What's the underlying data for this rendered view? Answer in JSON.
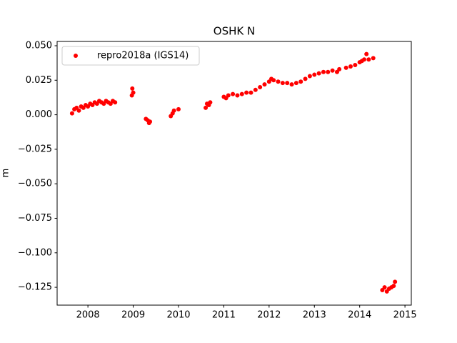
{
  "chart_data": {
    "type": "scatter",
    "title": "OSHK N",
    "y_label": "m",
    "xlim": [
      2007.32,
      2015.14
    ],
    "xticks": [
      2008,
      2009,
      2010,
      2011,
      2012,
      2013,
      2014,
      2015
    ],
    "ylim": [
      -0.1379,
      0.0531
    ],
    "yticks": [
      {
        "value": 0.05,
        "label": "0.050"
      },
      {
        "value": 0.025,
        "label": "0.025"
      },
      {
        "value": 0,
        "label": "0.000"
      },
      {
        "value": -0.025,
        "label": "−0.025"
      },
      {
        "value": -0.05,
        "label": "−0.050"
      },
      {
        "value": -0.075,
        "label": "−0.075"
      },
      {
        "value": -0.1,
        "label": "−0.100"
      },
      {
        "value": -0.125,
        "label": "−0.125"
      }
    ],
    "legend": "upper left",
    "series": [
      {
        "name": "repro2018a (IGS14)",
        "color": "#ff0000",
        "x": [
          2007.65,
          2007.7,
          2007.75,
          2007.8,
          2007.85,
          2007.9,
          2007.95,
          2008.0,
          2008.05,
          2008.1,
          2008.15,
          2008.2,
          2008.25,
          2008.3,
          2008.35,
          2008.4,
          2008.45,
          2008.5,
          2008.55,
          2008.6,
          2008.97,
          2008.98,
          2009.0,
          2009.28,
          2009.32,
          2009.35,
          2009.37,
          2009.83,
          2009.87,
          2009.9,
          2010.0,
          2010.6,
          2010.63,
          2010.67,
          2010.7,
          2011.0,
          2011.05,
          2011.1,
          2011.2,
          2011.3,
          2011.4,
          2011.5,
          2011.6,
          2011.7,
          2011.8,
          2011.9,
          2012.0,
          2012.05,
          2012.1,
          2012.2,
          2012.3,
          2012.4,
          2012.5,
          2012.6,
          2012.7,
          2012.8,
          2012.9,
          2013.0,
          2013.1,
          2013.2,
          2013.3,
          2013.4,
          2013.5,
          2013.55,
          2013.7,
          2013.8,
          2013.9,
          2014.0,
          2014.05,
          2014.1,
          2014.15,
          2014.2,
          2014.3,
          2014.5,
          2014.55,
          2014.6,
          2014.65,
          2014.7,
          2014.75,
          2014.78
        ],
        "values": [
          0.001,
          0.004,
          0.005,
          0.003,
          0.006,
          0.005,
          0.007,
          0.006,
          0.008,
          0.007,
          0.009,
          0.008,
          0.01,
          0.009,
          0.008,
          0.01,
          0.009,
          0.008,
          0.01,
          0.009,
          0.014,
          0.019,
          0.016,
          -0.003,
          -0.004,
          -0.006,
          -0.005,
          -0.001,
          0.001,
          0.003,
          0.004,
          0.005,
          0.008,
          0.007,
          0.009,
          0.013,
          0.012,
          0.014,
          0.015,
          0.014,
          0.015,
          0.016,
          0.016,
          0.018,
          0.02,
          0.022,
          0.024,
          0.026,
          0.025,
          0.024,
          0.023,
          0.023,
          0.022,
          0.023,
          0.024,
          0.026,
          0.028,
          0.029,
          0.03,
          0.031,
          0.031,
          0.032,
          0.031,
          0.033,
          0.034,
          0.035,
          0.036,
          0.038,
          0.039,
          0.04,
          0.044,
          0.04,
          0.041,
          -0.127,
          -0.125,
          -0.128,
          -0.126,
          -0.125,
          -0.124,
          -0.121
        ]
      }
    ]
  }
}
